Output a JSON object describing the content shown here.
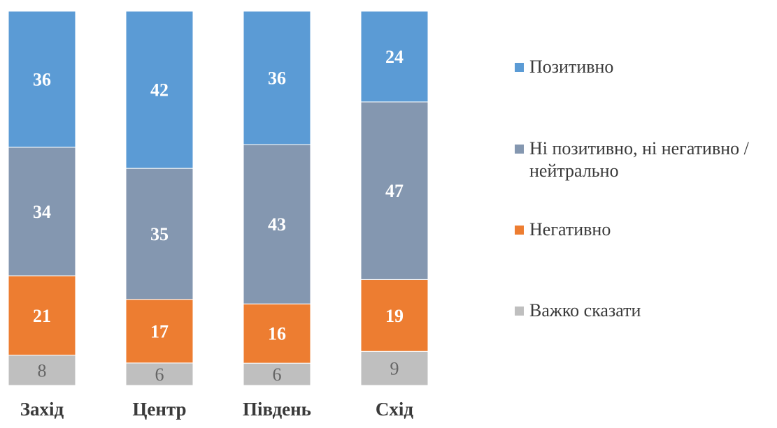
{
  "chart_data": {
    "type": "bar",
    "stacked": true,
    "categories": [
      "Захід",
      "Центр",
      "Південь",
      "Схід"
    ],
    "series": [
      {
        "name": "Важко сказати",
        "color": "#BFBFBF",
        "values": [
          8,
          6,
          6,
          9
        ]
      },
      {
        "name": "Негативно",
        "color": "#ED7D31",
        "values": [
          21,
          17,
          16,
          19
        ]
      },
      {
        "name": "Ні позитивно, ні негативно / нейтрально",
        "color": "#8497B0",
        "values": [
          34,
          35,
          43,
          47
        ]
      },
      {
        "name": "Позитивно",
        "color": "#5B9BD5",
        "values": [
          36,
          42,
          36,
          24
        ]
      }
    ],
    "legend_order": [
      "Позитивно",
      "Ні позитивно, ні негативно / нейтрально",
      "Негативно",
      "Важко сказати"
    ],
    "legend_position": "right",
    "data_labels": true,
    "grid": false
  }
}
